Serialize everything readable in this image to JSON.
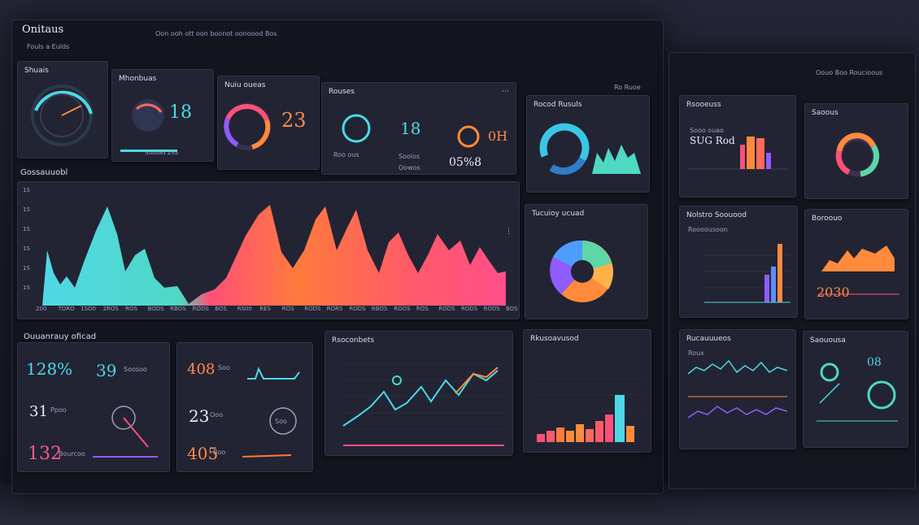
{
  "app": {
    "title": "Onitaus",
    "subtitle": "Fouls a Eulds",
    "toolbar_text": "Oon ooh ott oon boonot oonoood Bos"
  },
  "main_panels": {
    "p1": {
      "title": "Shuais"
    },
    "p2": {
      "title": "Mhonbuas",
      "value": "18",
      "footer": "Susoad 2SS"
    },
    "p3": {
      "title": "Nuiu oueas",
      "value": "23"
    },
    "p4": {
      "title": "Rouses",
      "value": "18",
      "label_a": "Roo ous",
      "label_b": "Soolos"
    },
    "p4b": {
      "value": "0H",
      "value2": "05%8",
      "label": "Oowos"
    },
    "p5": {
      "title": "Rocod Rusuls",
      "header_right": "Ro Ruoe"
    },
    "big_chart": {
      "title": "Gossauuobl"
    },
    "p6": {
      "title": "Tucuioy ucuad"
    },
    "row3_header": "Ouuanrauy oficad",
    "p7": {
      "v1": "128%",
      "v2": "39",
      "v2_label": "Soosoo",
      "v3": "31",
      "v3_label": "Ppoo",
      "v4": "132",
      "v4_label": "Bourcoo"
    },
    "p8": {
      "v1": "408",
      "v1_label": "Soo",
      "v2": "23",
      "v2_label": "Ooo",
      "v3": "405",
      "v3_label": "Boo",
      "ring": "Soo"
    },
    "p9": {
      "title": "Rsoconbets"
    },
    "p10": {
      "title": "Rkusoavusod"
    }
  },
  "right_panels": {
    "header": "Oouo Boo Roucioous",
    "r1": {
      "title": "Rsooeuss",
      "subtitle": "Sooo ouao",
      "value": "SUG Rod"
    },
    "r2": {
      "title": "Saoous"
    },
    "r3": {
      "title": "Nolstro Soouood",
      "sub": "Roooousoon"
    },
    "r4": {
      "title": "Boroouo",
      "value": "2030"
    },
    "r5": {
      "title": "Rucauuueos",
      "sub": "Roux"
    },
    "r6": {
      "title": "Saouousa",
      "value": "08"
    }
  },
  "big_chart_ticks": [
    "200",
    "TORO",
    "1SO0",
    "2ROS",
    "ROS",
    "BODS",
    "RBOS",
    "RODS",
    "BOS",
    "RS00",
    "RES",
    "ROS",
    "RODS",
    "RORS",
    "RODS",
    "RBOS",
    "ROOS",
    "ROS",
    "RODS",
    "RODS",
    "RODS",
    "BOS"
  ],
  "big_chart_yticks": [
    "1S",
    "1S",
    "1S",
    "1S",
    "1S",
    "1S"
  ],
  "colors": {
    "cyan": "#4fd8e6",
    "orange": "#ff8a3c",
    "pink": "#ff4f7a",
    "purple": "#8f5cff",
    "bg": "#14151f",
    "panel": "#222433"
  }
}
